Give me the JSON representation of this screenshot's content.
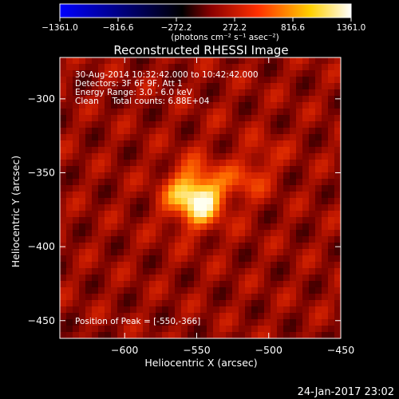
{
  "chart_data": {
    "type": "heatmap",
    "title": "Reconstructed RHESSI Image",
    "xlabel": "Heliocentric X (arcsec)",
    "ylabel": "Heliocentric Y (arcsec)",
    "xlim": [
      -645,
      -450
    ],
    "ylim": [
      -462,
      -272
    ],
    "x_ticks": [
      -600,
      -550,
      -500,
      -450
    ],
    "x_tick_labels": [
      "−600",
      "−550",
      "−500",
      "−450"
    ],
    "y_ticks": [
      -300,
      -350,
      -400,
      -450
    ],
    "y_tick_labels": [
      "−300",
      "−350",
      "−400",
      "−450"
    ],
    "colorbar": {
      "min": -1361.0,
      "max": 1361.0,
      "tick_values": [
        -1361.0,
        -816.6,
        -272.2,
        272.2,
        816.6,
        1361.0
      ],
      "tick_labels": [
        "−1361.0",
        "−816.6",
        "−272.2",
        "272.2",
        "816.6",
        "1361.0"
      ],
      "unit_label": "(photons cm⁻² s⁻¹ asec⁻²)",
      "colormap": [
        "#0000ff",
        "#000000",
        "#8b0000",
        "#ff3000",
        "#ffd000",
        "#ffffff"
      ]
    },
    "annotations": [
      "30-Aug-2014 10:32:42.000 to 10:42:42.000",
      "Detectors: 3F 6F 9F, Att 1",
      "Energy Range: 3.0 - 6.0 keV",
      "Clean     Total counts: 6.88E+04"
    ],
    "peak_label": "Position of Peak = [-550,-366]",
    "sources": [
      {
        "x": -550,
        "y": -366,
        "peak": 1361.0
      },
      {
        "x": -515,
        "y": -355,
        "peak": 700
      },
      {
        "x": -502,
        "y": -338,
        "peak": 560
      },
      {
        "x": -537,
        "y": -320,
        "peak": 380
      }
    ],
    "background_level": 560
  },
  "footer": {
    "timestamp": "24-Jan-2017 23:02"
  }
}
